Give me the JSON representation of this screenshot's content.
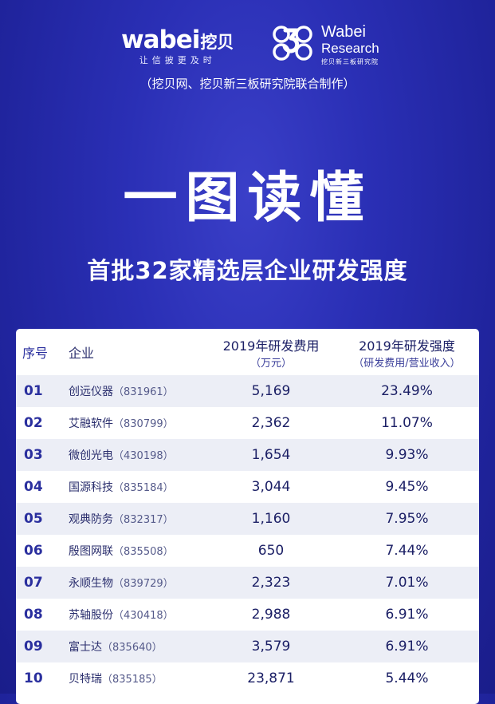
{
  "brand": {
    "wabei_word": "wabei",
    "wabei_cn": "挖贝",
    "wabei_slogan": "让信披更及时",
    "research_icon": "wabei-research-3-icon",
    "research_name_line1": "Wabei",
    "research_name_line2": "Research",
    "research_cn": "挖贝新三板研究院"
  },
  "header": {
    "joint_note": "（挖贝网、挖贝新三板研究院联合制作）",
    "title": "一图读懂",
    "subtitle": "首批32家精选层企业研发强度"
  },
  "table": {
    "headers": {
      "no": "序号",
      "company": "企业",
      "cost": "2019年研发费用",
      "cost_unit": "（万元）",
      "intensity": "2019年研发强度",
      "intensity_note": "（研发费用/营业收入）"
    },
    "rows": [
      {
        "no": "01",
        "name": "创远仪器",
        "code": "（831961）",
        "cost": "5,169",
        "intensity": "23.49%"
      },
      {
        "no": "02",
        "name": "艾融软件",
        "code": "（830799）",
        "cost": "2,362",
        "intensity": "11.07%"
      },
      {
        "no": "03",
        "name": "微创光电",
        "code": "（430198）",
        "cost": "1,654",
        "intensity": "9.93%"
      },
      {
        "no": "04",
        "name": "国源科技",
        "code": "（835184）",
        "cost": "3,044",
        "intensity": "9.45%"
      },
      {
        "no": "05",
        "name": "观典防务",
        "code": "（832317）",
        "cost": "1,160",
        "intensity": "7.95%"
      },
      {
        "no": "06",
        "name": "殷图网联",
        "code": "（835508）",
        "cost": "650",
        "intensity": "7.44%"
      },
      {
        "no": "07",
        "name": "永顺生物",
        "code": "（839729）",
        "cost": "2,323",
        "intensity": "7.01%"
      },
      {
        "no": "08",
        "name": "苏轴股份",
        "code": "（430418）",
        "cost": "2,988",
        "intensity": "6.91%"
      },
      {
        "no": "09",
        "name": "富士达",
        "code": "（835640）",
        "cost": "3,579",
        "intensity": "6.91%"
      },
      {
        "no": "10",
        "name": "贝特瑞",
        "code": "（835185）",
        "cost": "23,871",
        "intensity": "5.44%"
      }
    ]
  }
}
